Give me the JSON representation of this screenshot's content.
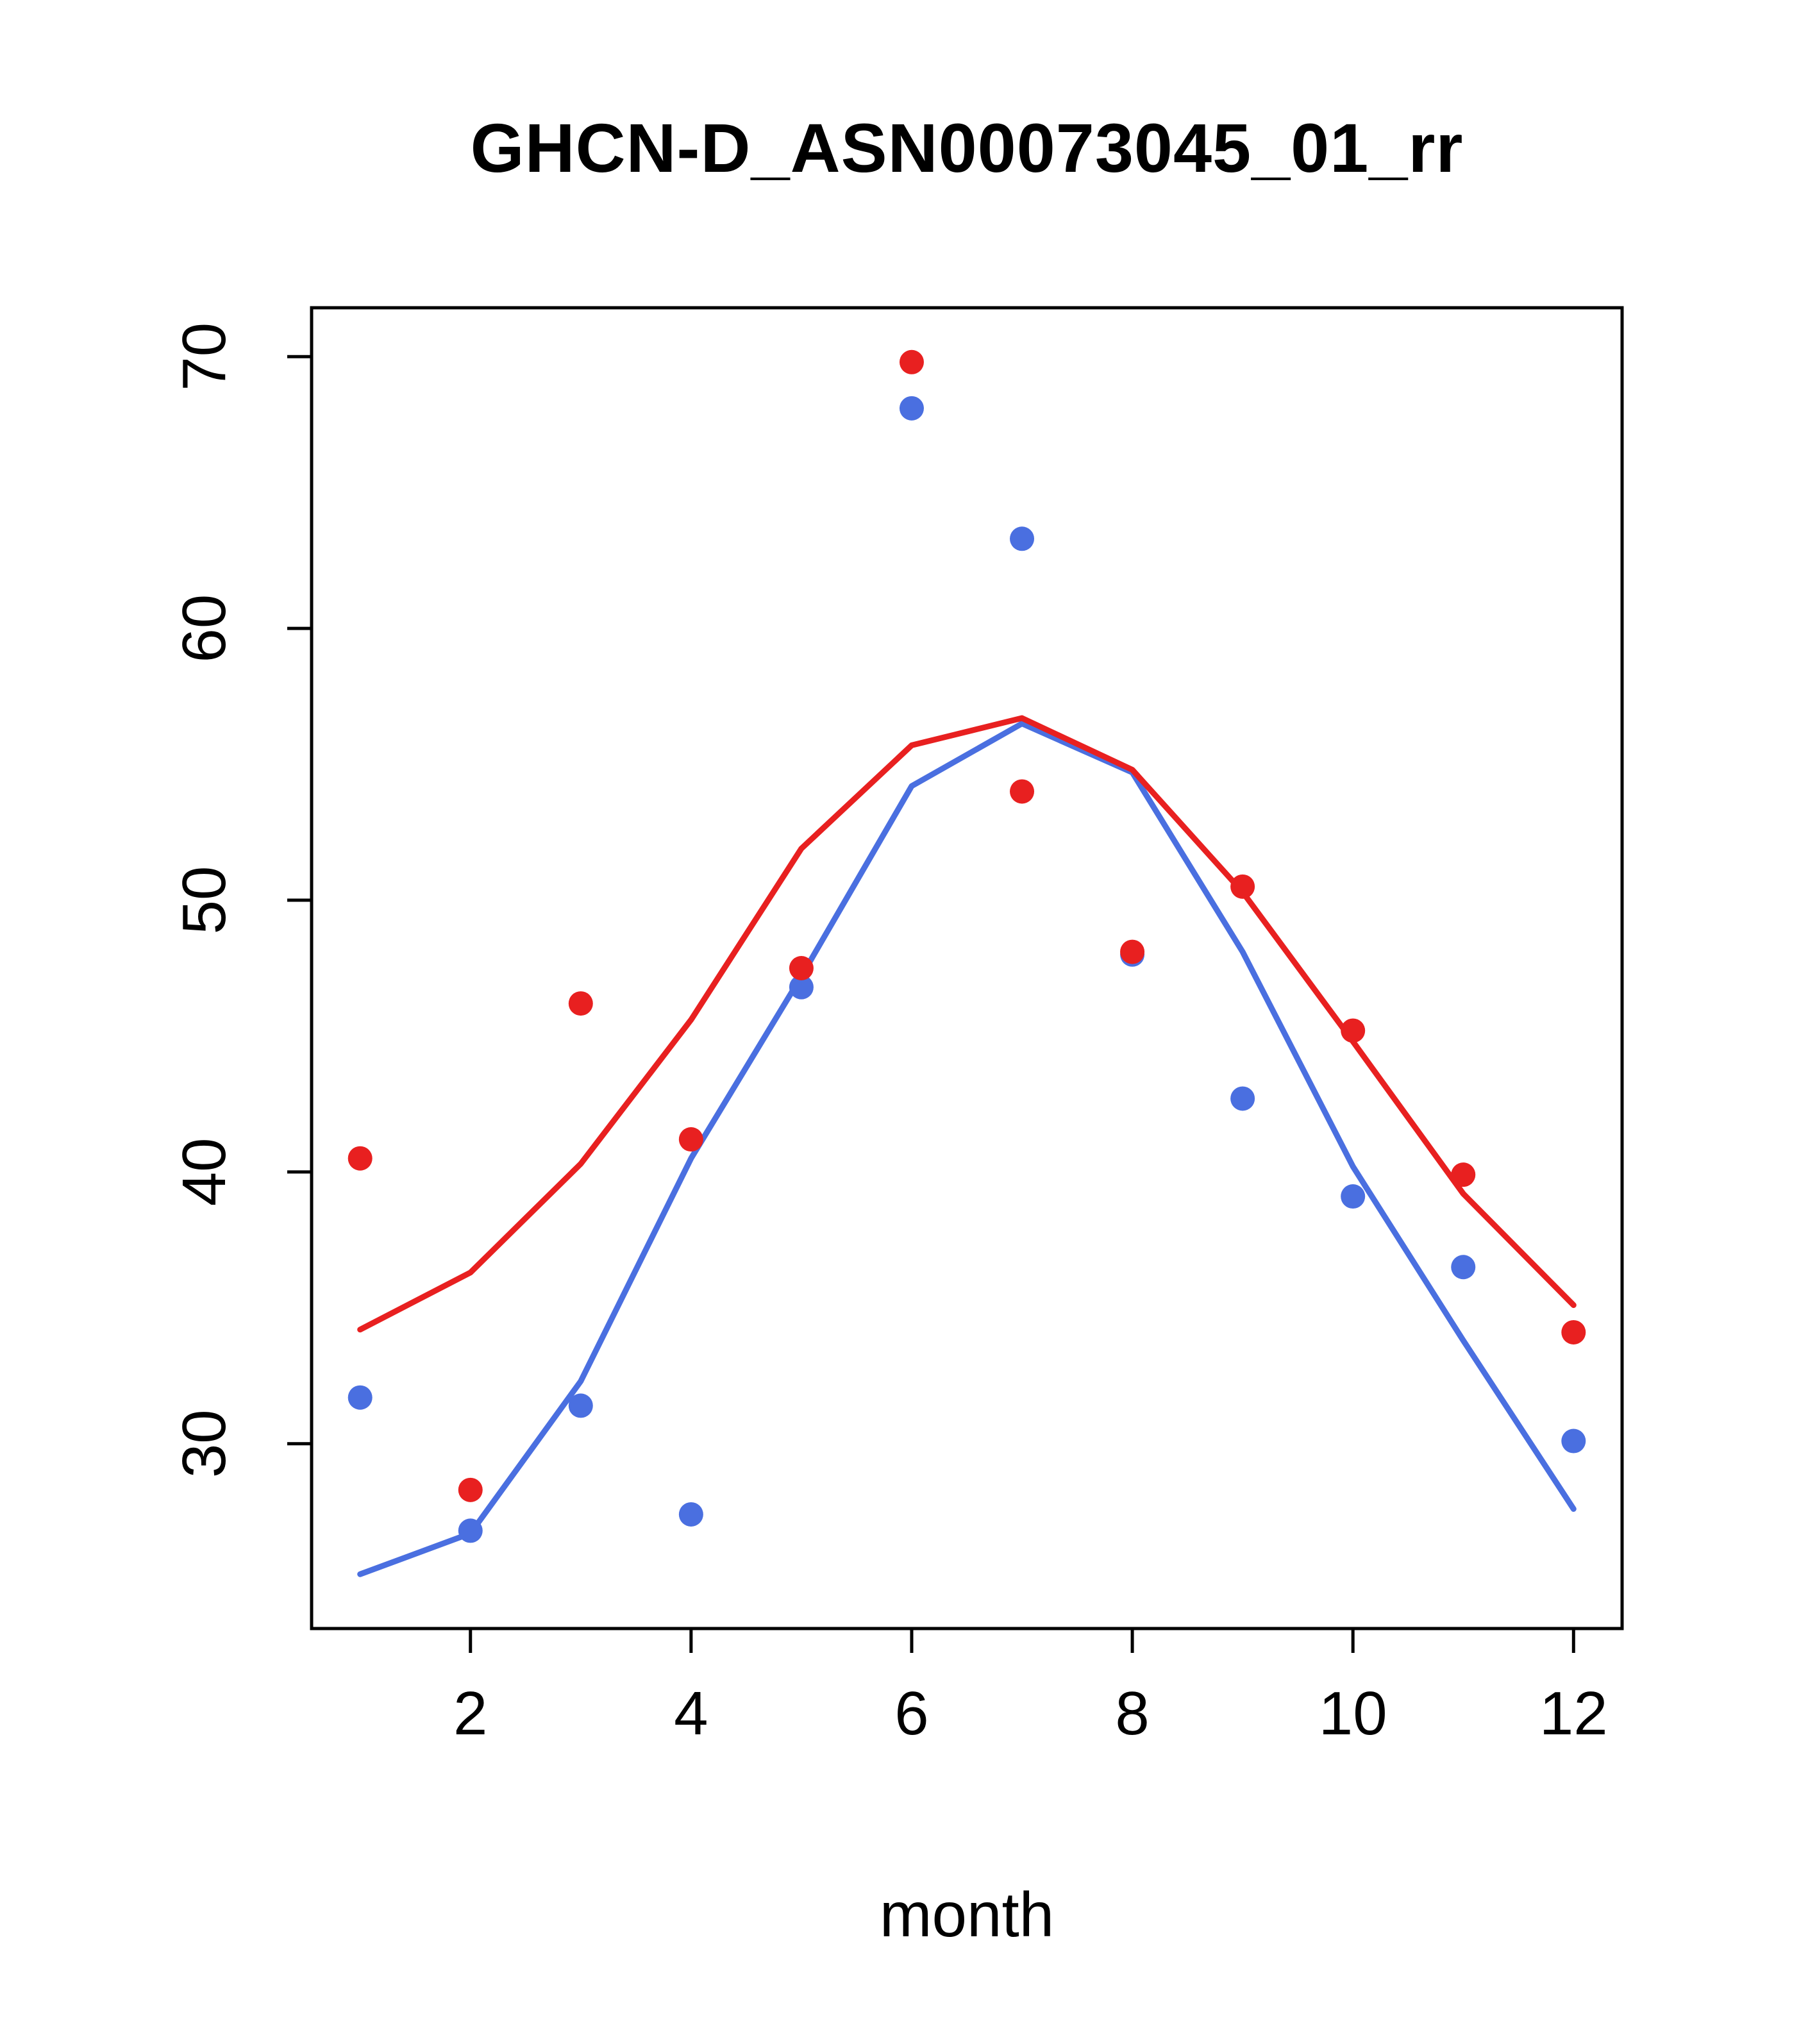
{
  "figure": {
    "background": "#ffffff",
    "frame_color": "#000000"
  },
  "chart_data": {
    "type": "scatter",
    "title": "GHCN-D_ASN00073045_01_rr",
    "xlabel": "month",
    "ylabel": "",
    "x": [
      1,
      2,
      3,
      4,
      5,
      6,
      7,
      8,
      9,
      10,
      11,
      12
    ],
    "xticks": [
      2,
      4,
      6,
      8,
      10,
      12
    ],
    "yticks": [
      30,
      40,
      50,
      60,
      70
    ],
    "xlim": [
      0.56,
      12.44
    ],
    "ylim": [
      23.2,
      71.8
    ],
    "grid": false,
    "legend": "none",
    "colors": {
      "red": "#e82020",
      "blue": "#4a6fe0"
    },
    "series": [
      {
        "name": "blue-line",
        "style": "line",
        "color": "#4a6fe0",
        "values": [
          25.2,
          26.7,
          32.3,
          40.5,
          47.2,
          54.2,
          56.5,
          54.7,
          48.1,
          40.2,
          33.8,
          27.6
        ]
      },
      {
        "name": "red-line",
        "style": "line",
        "color": "#e82020",
        "values": [
          34.2,
          36.3,
          40.3,
          45.6,
          51.9,
          55.7,
          56.7,
          54.8,
          50.3,
          44.8,
          39.2,
          35.1
        ]
      },
      {
        "name": "blue-points",
        "style": "points",
        "color": "#4a6fe0",
        "values": [
          31.7,
          26.8,
          31.4,
          27.4,
          46.8,
          68.1,
          63.3,
          48.0,
          42.7,
          39.1,
          36.5,
          30.1
        ]
      },
      {
        "name": "red-points",
        "style": "points",
        "color": "#e82020",
        "values": [
          40.5,
          28.3,
          46.2,
          41.2,
          47.5,
          69.8,
          54.0,
          48.1,
          50.5,
          45.2,
          39.9,
          34.1
        ]
      }
    ]
  }
}
